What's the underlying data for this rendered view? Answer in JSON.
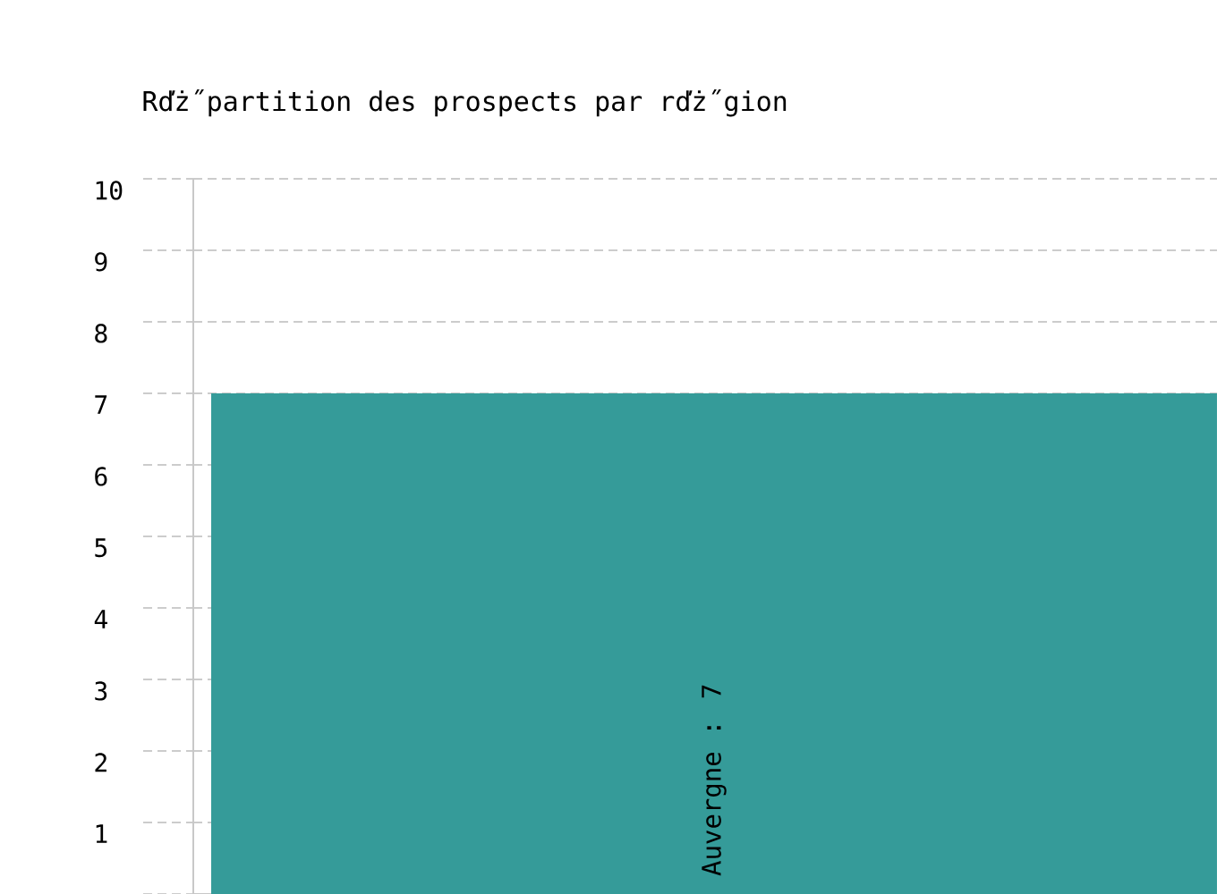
{
  "chart_data": {
    "type": "bar",
    "title": "Rďż˝partition des prospects par rďż˝gion",
    "categories": [
      null
    ],
    "values": [
      7
    ],
    "value_labels": [
      "Auvergne : 7"
    ],
    "color": "#359b99",
    "ylim": [
      0,
      10
    ],
    "yticks": [
      {
        "value": 0,
        "label": null
      },
      1,
      2,
      3,
      4,
      5,
      6,
      7,
      8,
      9,
      10
    ],
    "grid": "y"
  }
}
